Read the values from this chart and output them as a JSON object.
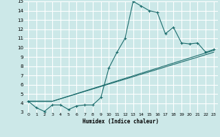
{
  "xlabel": "Humidex (Indice chaleur)",
  "xlim": [
    -0.5,
    23.5
  ],
  "ylim": [
    3,
    15
  ],
  "yticks": [
    3,
    4,
    5,
    6,
    7,
    8,
    9,
    10,
    11,
    12,
    13,
    14,
    15
  ],
  "xticks": [
    0,
    1,
    2,
    3,
    4,
    5,
    6,
    7,
    8,
    9,
    10,
    11,
    12,
    13,
    14,
    15,
    16,
    17,
    18,
    19,
    20,
    21,
    22,
    23
  ],
  "bg_color": "#cce8e8",
  "line_color": "#1a6b6b",
  "grid_color": "#ffffff",
  "line1_x": [
    0,
    1,
    2,
    3,
    4,
    5,
    6,
    7,
    8,
    9,
    10,
    11,
    12,
    13,
    14,
    15,
    16,
    17,
    18,
    19,
    20,
    21,
    22,
    23
  ],
  "line1_y": [
    4.2,
    3.5,
    3.1,
    3.8,
    3.8,
    3.3,
    3.7,
    3.8,
    3.8,
    4.6,
    7.8,
    9.5,
    11.0,
    15.0,
    14.5,
    14.0,
    13.8,
    11.5,
    12.2,
    10.5,
    10.4,
    10.5,
    9.5,
    9.8
  ],
  "line2_x": [
    0,
    3,
    23
  ],
  "line2_y": [
    4.2,
    4.2,
    9.7
  ],
  "line3_x": [
    0,
    3,
    23
  ],
  "line3_y": [
    4.2,
    4.2,
    9.5
  ]
}
